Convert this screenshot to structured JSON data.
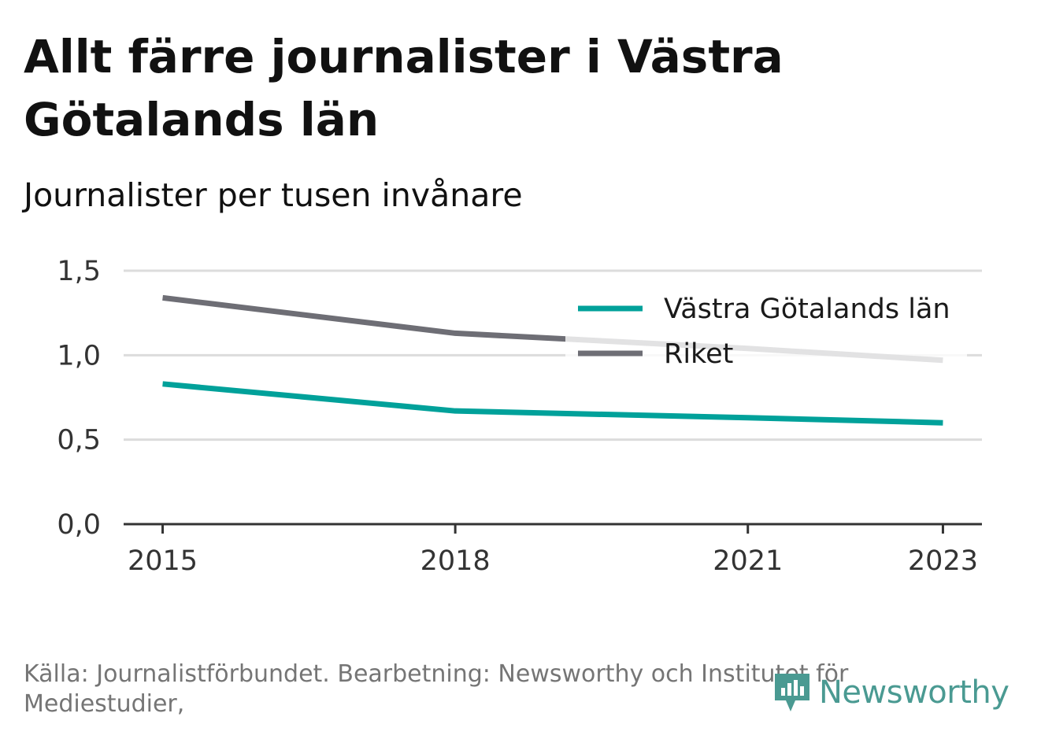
{
  "title": "Allt färre journalister i Västra Götalands län",
  "subtitle": "Journalister per tusen invånare",
  "source": "Källa: Journalistförbundet. Bearbetning: Newsworthy och Institutet för Mediestudier,",
  "logo": {
    "text": "Newsworthy",
    "icon": "newsworthy-logo-icon",
    "color": "#4a9a92"
  },
  "chart_data": {
    "type": "line",
    "x": [
      2015,
      2018,
      2021,
      2023
    ],
    "x_tick_labels": [
      "2015",
      "2018",
      "2021",
      "2023"
    ],
    "y_tick_labels": [
      "0,0",
      "0,5",
      "1,0",
      "1,5"
    ],
    "y_ticks": [
      0,
      0.5,
      1.0,
      1.5
    ],
    "ylim": [
      0,
      1.5
    ],
    "xlim": [
      2014.6,
      2023.4
    ],
    "grid": true,
    "legend_position": "top-right",
    "series": [
      {
        "name": "Västra Götalands län",
        "color": "#00a19a",
        "values": [
          0.83,
          0.67,
          0.63,
          0.6
        ]
      },
      {
        "name": "Riket",
        "color": "#6e6e75",
        "values": [
          1.34,
          1.13,
          1.04,
          0.97
        ]
      }
    ]
  }
}
